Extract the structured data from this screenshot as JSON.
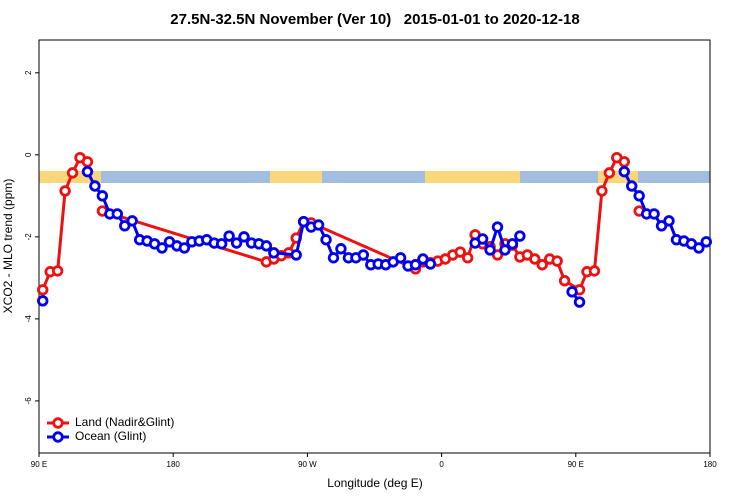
{
  "chart_data": {
    "type": "line",
    "title": "27.5N-32.5N November (Ver 10)   2015-01-01 to 2020-12-18",
    "x_label": "Longitude (deg E)",
    "y_label": "XCO2 - MLO trend (ppm)",
    "xlim": [
      90,
      540
    ],
    "ylim": [
      -7.27,
      2.8
    ],
    "xticks": [
      {
        "value": 90,
        "label": "90 E"
      },
      180,
      {
        "value": 270,
        "label": "90 W"
      },
      {
        "value": 360,
        "label": "0"
      },
      {
        "value": 450,
        "label": "90 E"
      },
      180
    ],
    "yticks": [
      -6,
      -4,
      -2,
      0,
      2
    ],
    "legend": "bottom-left",
    "series": [
      {
        "name": "Land (Nadir&Glint)",
        "color": "#ee1111",
        "x": [
          92.5,
          97.5,
          102.5,
          107.5,
          112.5,
          117.5,
          122.5,
          127.5,
          132.5,
          242.5,
          247.5,
          252.5,
          257.5,
          262.5,
          267.5,
          272.5,
          342.5,
          347.5,
          352.5,
          357.5,
          362.5,
          367.5,
          372.5,
          377.5,
          382.5,
          387.5,
          392.5,
          397.5,
          402.5,
          407.5,
          412.5,
          417.5,
          422.5,
          427.5,
          432.5,
          437.5,
          442.5,
          452.5,
          457.5,
          462.5,
          467.5,
          472.5,
          477.5,
          482.5,
          487.5,
          492.5
        ],
        "values": [
          -3.29,
          -2.85,
          -2.83,
          -0.88,
          -0.44,
          -0.07,
          -0.17,
          null,
          -1.37,
          -2.61,
          -2.54,
          -2.46,
          -2.39,
          -2.03,
          -1.63,
          -1.66,
          -2.78,
          -2.61,
          -2.63,
          -2.59,
          -2.54,
          -2.44,
          -2.37,
          -2.51,
          -1.95,
          -2.17,
          -2.24,
          -2.44,
          -2.17,
          -2.2,
          -2.49,
          -2.44,
          -2.54,
          -2.68,
          -2.54,
          -2.59,
          -3.07,
          -3.29,
          -2.85,
          -2.83,
          -0.88,
          -0.44,
          -0.07,
          -0.17,
          null,
          -1.37
        ]
      },
      {
        "name": "Ocean (Glint)",
        "color": "#0000ee",
        "x": [
          92.5,
          117.5,
          122.5,
          127.5,
          132.5,
          137.5,
          142.5,
          147.5,
          152.5,
          157.5,
          162.5,
          167.5,
          172.5,
          177.5,
          182.5,
          187.5,
          192.5,
          197.5,
          202.5,
          207.5,
          212.5,
          217.5,
          222.5,
          227.5,
          232.5,
          237.5,
          242.5,
          247.5,
          262.5,
          267.5,
          272.5,
          277.5,
          282.5,
          287.5,
          292.5,
          297.5,
          302.5,
          307.5,
          312.5,
          317.5,
          322.5,
          327.5,
          332.5,
          337.5,
          342.5,
          347.5,
          352.5,
          377.5,
          382.5,
          387.5,
          392.5,
          397.5,
          402.5,
          407.5,
          412.5,
          442.5,
          447.5,
          452.5,
          477.5,
          482.5,
          487.5,
          492.5,
          497.5,
          502.5,
          507.5,
          512.5,
          517.5,
          522.5,
          527.5,
          532.5,
          537.5
        ],
        "values": [
          -3.56,
          null,
          -0.41,
          -0.76,
          -1.0,
          -1.44,
          -1.44,
          -1.73,
          -1.61,
          -2.07,
          -2.1,
          -2.17,
          -2.27,
          -2.12,
          -2.22,
          -2.27,
          -2.12,
          -2.1,
          -2.07,
          -2.15,
          -2.17,
          -1.98,
          -2.15,
          -2.0,
          -2.15,
          -2.17,
          -2.22,
          -2.39,
          -2.44,
          -1.63,
          -1.76,
          -1.71,
          -2.07,
          -2.51,
          -2.29,
          -2.51,
          -2.51,
          -2.44,
          -2.68,
          -2.66,
          -2.68,
          -2.61,
          -2.51,
          -2.71,
          -2.68,
          -2.54,
          -2.66,
          null,
          -2.15,
          -2.05,
          -2.32,
          -1.76,
          -2.32,
          -2.17,
          -1.98,
          null,
          -3.34,
          -3.59,
          null,
          -0.41,
          -0.76,
          -1.0,
          -1.44,
          -1.44,
          -1.73,
          -1.61,
          -2.07,
          -2.1,
          -2.17,
          -2.27,
          -2.12
        ]
      }
    ]
  }
}
